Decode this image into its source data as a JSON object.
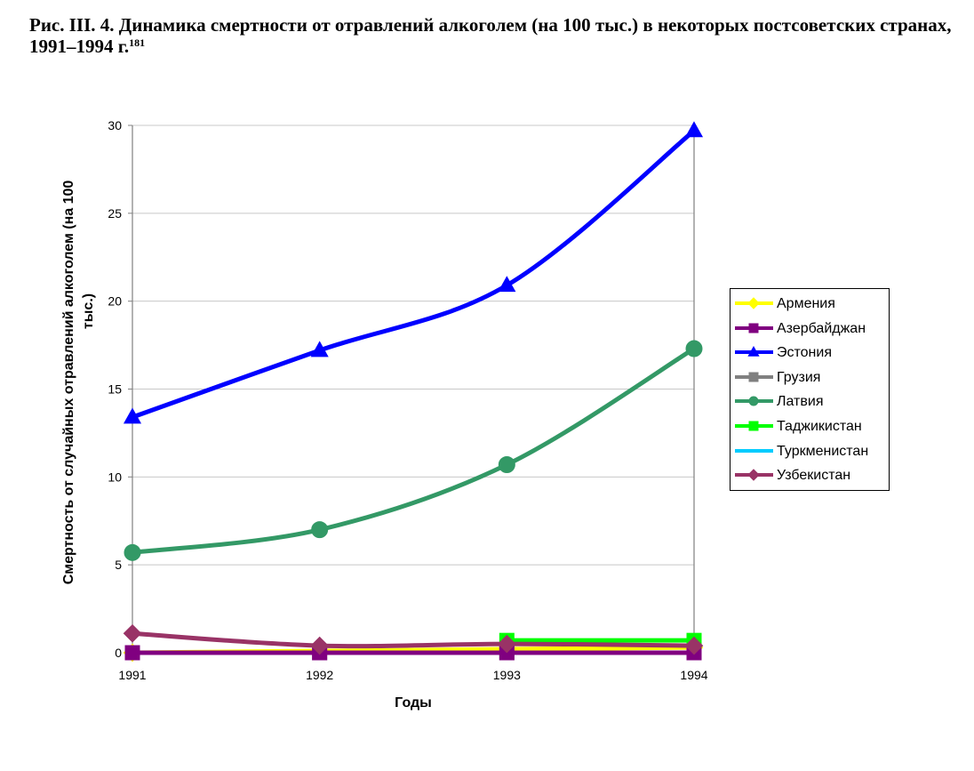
{
  "figure": {
    "title_prefix": "Рис. III. 4.",
    "title_text": "Динамика смертности от отравлений алкоголем (на 100 тыс.) в некоторых постсоветских странах, 1991–1994 г.",
    "footnote": "181"
  },
  "chart_data": {
    "type": "line",
    "x": [
      1991,
      1992,
      1993,
      1994
    ],
    "xlabel": "Годы",
    "ylabel": "Смертность от случайных отравлений алкоголем (на 100 тыс.)",
    "ylim": [
      0,
      30
    ],
    "yticks": [
      0,
      5,
      10,
      15,
      20,
      25,
      30
    ],
    "grid": "horizontal",
    "legend_position": "right",
    "series": [
      {
        "name": "Армения",
        "color": "#FFFF00",
        "marker": "diamond",
        "values": [
          0.0,
          0.1,
          0.2,
          0.3
        ]
      },
      {
        "name": "Азербайджан",
        "color": "#800080",
        "marker": "square",
        "values": [
          0.0,
          0.0,
          0.0,
          0.0
        ]
      },
      {
        "name": "Эстония",
        "color": "#0000FF",
        "marker": "triangle",
        "values": [
          13.4,
          17.2,
          20.9,
          29.7
        ]
      },
      {
        "name": "Грузия",
        "color": "#808080",
        "marker": "square",
        "values": [
          0.0,
          0.0,
          0.0,
          0.0
        ]
      },
      {
        "name": "Латвия",
        "color": "#339966",
        "marker": "circle",
        "values": [
          5.7,
          7.0,
          10.7,
          17.3
        ]
      },
      {
        "name": "Таджикистан",
        "color": "#00FF00",
        "marker": "square",
        "values": [
          null,
          null,
          0.7,
          0.7
        ]
      },
      {
        "name": "Туркменистан",
        "color": "#00CCFF",
        "marker": "none",
        "values": [
          null,
          null,
          null,
          null
        ]
      },
      {
        "name": "Узбекистан",
        "color": "#993366",
        "marker": "diamond",
        "values": [
          1.1,
          0.4,
          0.5,
          0.4
        ]
      }
    ]
  }
}
